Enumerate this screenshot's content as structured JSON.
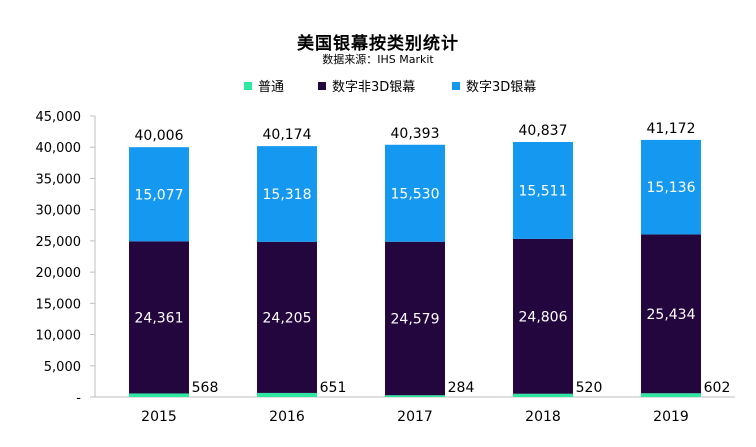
{
  "chart_data": {
    "type": "bar",
    "stacked": true,
    "title": "美国银幕按类别统计",
    "subtitle": "数据来源：IHS Markit",
    "categories": [
      "2015",
      "2016",
      "2017",
      "2018",
      "2019"
    ],
    "series": [
      {
        "name": "普通",
        "color": "#2ee8a2",
        "values": [
          568,
          651,
          284,
          520,
          602
        ]
      },
      {
        "name": "数字非3D银幕",
        "color": "#24063f",
        "values": [
          24361,
          24205,
          24579,
          24806,
          25434
        ]
      },
      {
        "name": "数字3D银幕",
        "color": "#1598f0",
        "values": [
          15077,
          15318,
          15530,
          15511,
          15136
        ]
      }
    ],
    "series_labels": [
      [
        "568",
        "651",
        "284",
        "520",
        "602"
      ],
      [
        "24,361",
        "24,205",
        "24,579",
        "24,806",
        "25,434"
      ],
      [
        "15,077",
        "15,318",
        "15,530",
        "15,511",
        "15,136"
      ]
    ],
    "totals": [
      40006,
      40174,
      40393,
      40837,
      41172
    ],
    "total_labels": [
      "40,006",
      "40,174",
      "40,393",
      "40,837",
      "41,172"
    ],
    "ylim": [
      0,
      45000
    ],
    "yticks": [
      0,
      5000,
      10000,
      15000,
      20000,
      25000,
      30000,
      35000,
      40000,
      45000
    ],
    "ytick_labels": [
      "-",
      "5,000",
      "10,000",
      "15,000",
      "20,000",
      "25,000",
      "30,000",
      "35,000",
      "40,000",
      "45,000"
    ],
    "legend_position": "top"
  }
}
